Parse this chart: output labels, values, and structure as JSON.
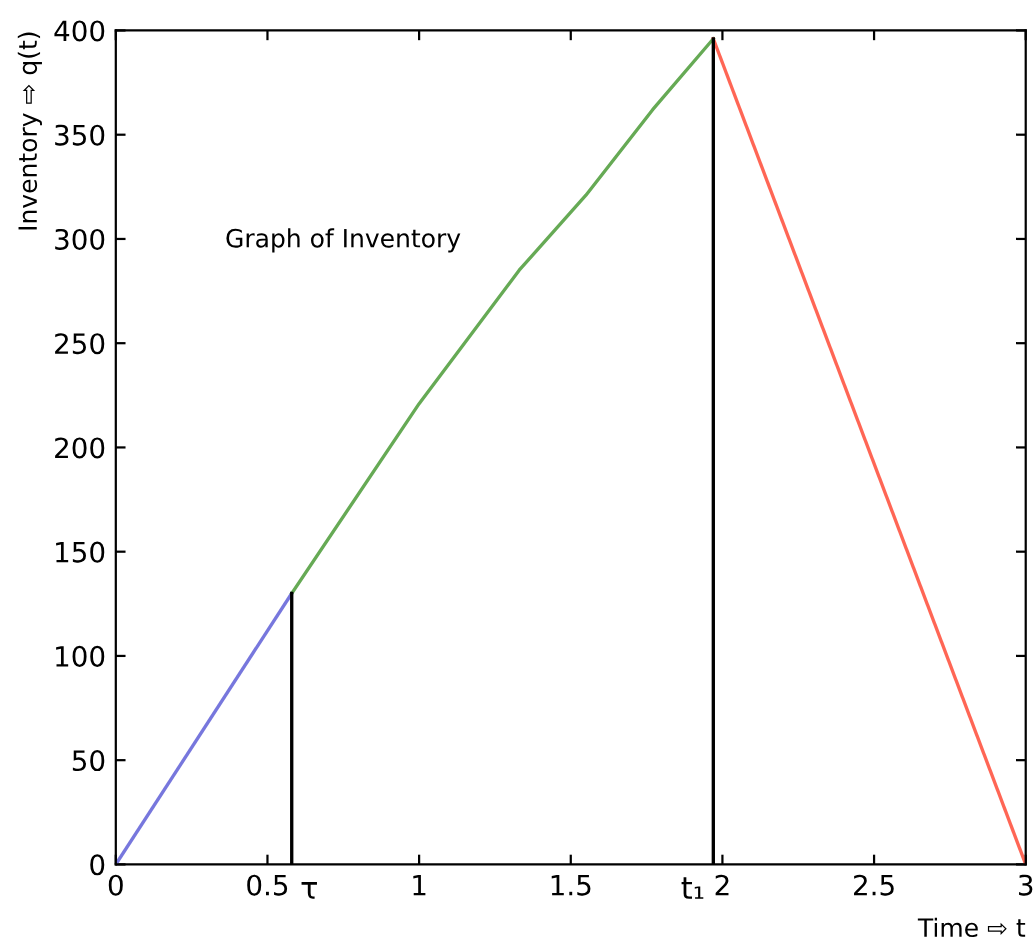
{
  "chart_data": {
    "type": "line",
    "xlabel": "Time ⇨ t",
    "ylabel": "Inventory ⇨ q(t)",
    "annotations": [
      "Graph of Inventory"
    ],
    "series": [
      {
        "color": "#7777dd",
        "x": [
          0,
          0.58
        ],
        "values": [
          0,
          130
        ]
      },
      {
        "color": "#66aa55",
        "x": [
          0.58,
          1.0,
          1.33,
          1.55,
          1.77,
          1.97
        ],
        "values": [
          130,
          221,
          285,
          321,
          362,
          396
        ]
      },
      {
        "color": "#ff6655",
        "x": [
          1.97,
          3
        ],
        "values": [
          396,
          0
        ]
      }
    ],
    "ref_lines": [
      {
        "axis": "x",
        "value": 0.58,
        "label": "τ",
        "color": "#000000"
      },
      {
        "axis": "x",
        "value": 1.97,
        "label": "t₁",
        "color": "#000000"
      }
    ],
    "xlim": [
      0,
      3
    ],
    "ylim": [
      0,
      400
    ],
    "xticks": [
      0,
      0.5,
      1,
      1.5,
      2,
      2.5,
      3
    ],
    "yticks": [
      0,
      50,
      100,
      150,
      200,
      250,
      300,
      350,
      400
    ],
    "grid": false,
    "marker": "none",
    "line_style": "solid"
  }
}
